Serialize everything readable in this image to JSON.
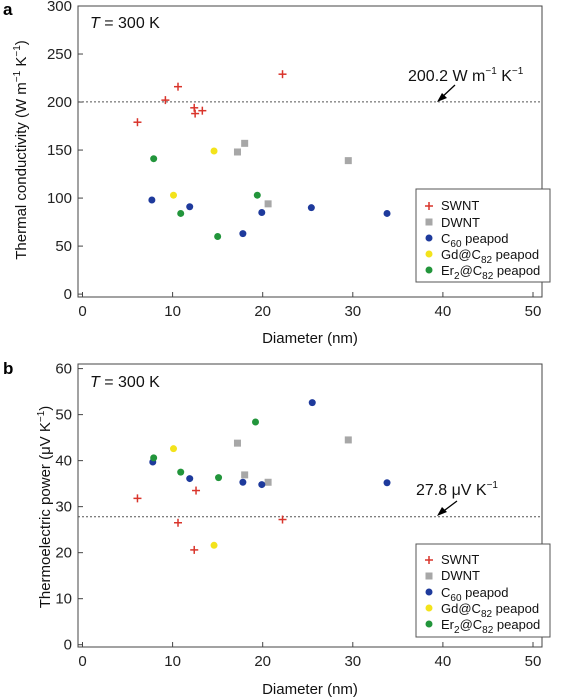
{
  "colors": {
    "swnt": "#d9342b",
    "dwnt": "#a7a7a7",
    "c60": "#1e3a9c",
    "gd": "#f3e31b",
    "er": "#22953b",
    "frame": "#444444"
  },
  "legend_labels": {
    "swnt": "SWNT",
    "dwnt": "DWNT",
    "c60": "C60 peapod",
    "gd": "Gd@C82 peapod",
    "er": "Er2@C82 peapod"
  },
  "chart_data": [
    {
      "type": "scatter",
      "panel": "a",
      "temperature_label": "T = 300 K",
      "xlabel": "Diameter (nm)",
      "ylabel": "Thermal conductivity (W m−1 K−1)",
      "xlim": [
        -0.5,
        51
      ],
      "ylim": [
        -3,
        300
      ],
      "xticks": [
        0,
        10,
        20,
        30,
        40,
        50
      ],
      "yticks": [
        0,
        50,
        100,
        150,
        200,
        250,
        300
      ],
      "reference_line": {
        "y": 200.2,
        "label": "200.2 W m−1 K−1"
      },
      "legend_position": "lower-right",
      "series": [
        {
          "name": "SWNT",
          "marker": "plus",
          "points": [
            [
              6.1,
              179
            ],
            [
              9.2,
              202
            ],
            [
              10.6,
              216
            ],
            [
              12.4,
              194
            ],
            [
              12.5,
              188
            ],
            [
              13.3,
              191
            ],
            [
              22.2,
              229
            ]
          ]
        },
        {
          "name": "DWNT",
          "marker": "square",
          "points": [
            [
              17.2,
              148
            ],
            [
              18.0,
              157
            ],
            [
              20.6,
              94
            ],
            [
              29.5,
              139
            ]
          ]
        },
        {
          "name": "C60 peapod",
          "marker": "circle",
          "points": [
            [
              7.7,
              98
            ],
            [
              11.9,
              91
            ],
            [
              17.8,
              63
            ],
            [
              19.9,
              85
            ],
            [
              25.4,
              90
            ],
            [
              33.8,
              84
            ]
          ]
        },
        {
          "name": "Gd@C82 peapod",
          "marker": "circle",
          "points": [
            [
              10.1,
              103
            ],
            [
              14.6,
              149
            ]
          ]
        },
        {
          "name": "Er2@C82 peapod",
          "marker": "circle",
          "points": [
            [
              7.9,
              141
            ],
            [
              10.9,
              84
            ],
            [
              15.0,
              60
            ],
            [
              19.4,
              103
            ]
          ]
        }
      ]
    },
    {
      "type": "scatter",
      "panel": "b",
      "temperature_label": "T = 300 K",
      "xlabel": "Diameter (nm)",
      "ylabel": "Thermoelectric power (μV K−1)",
      "xlim": [
        -0.5,
        51
      ],
      "ylim": [
        -0.5,
        61
      ],
      "xticks": [
        0,
        10,
        20,
        30,
        40,
        50
      ],
      "yticks": [
        0,
        10,
        20,
        30,
        40,
        50,
        60
      ],
      "reference_line": {
        "y": 27.8,
        "label": "27.8 μV K−1"
      },
      "legend_position": "lower-right",
      "series": [
        {
          "name": "SWNT",
          "marker": "plus",
          "points": [
            [
              6.1,
              31.8
            ],
            [
              10.6,
              26.5
            ],
            [
              12.4,
              20.6
            ],
            [
              12.6,
              33.5
            ],
            [
              22.2,
              27.2
            ]
          ]
        },
        {
          "name": "DWNT",
          "marker": "square",
          "points": [
            [
              17.2,
              43.8
            ],
            [
              18.0,
              36.9
            ],
            [
              20.6,
              35.3
            ],
            [
              29.5,
              44.5
            ]
          ]
        },
        {
          "name": "C60 peapod",
          "marker": "circle",
          "points": [
            [
              7.8,
              39.7
            ],
            [
              11.9,
              36.1
            ],
            [
              17.8,
              35.3
            ],
            [
              19.9,
              34.8
            ],
            [
              25.5,
              52.6
            ],
            [
              33.8,
              35.2
            ]
          ]
        },
        {
          "name": "Gd@C82 peapod",
          "marker": "circle",
          "points": [
            [
              10.1,
              42.6
            ],
            [
              14.6,
              21.6
            ]
          ]
        },
        {
          "name": "Er2@C82 peapod",
          "marker": "circle",
          "points": [
            [
              7.9,
              40.6
            ],
            [
              10.9,
              37.5
            ],
            [
              15.1,
              36.3
            ],
            [
              19.2,
              48.4
            ]
          ]
        }
      ]
    }
  ]
}
